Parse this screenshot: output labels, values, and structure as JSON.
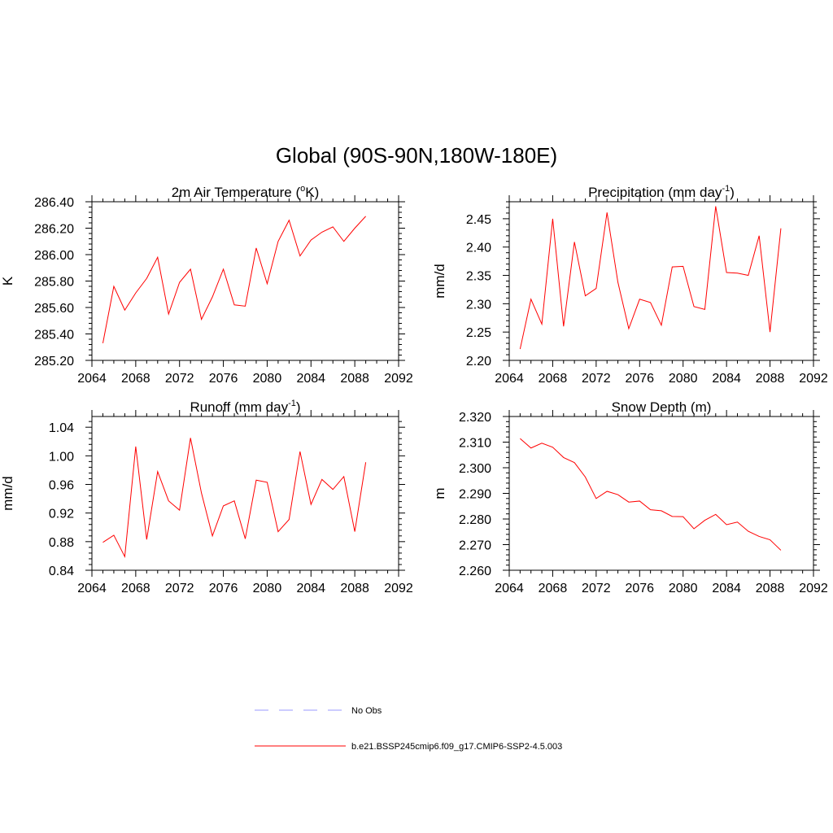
{
  "figure": {
    "title": "Global (90S-90N,180W-180E)"
  },
  "colors": {
    "series": "#ff0000",
    "obs": "#9999ff",
    "axis": "#000000"
  },
  "chart_data": [
    {
      "type": "line",
      "title_main": "2m Air Temperature (",
      "title_sup_o": "o",
      "title_tail": "K)",
      "title_sup": "",
      "title_end": "",
      "ylabel": "K",
      "xlabel": "",
      "xlim": [
        2064,
        2092
      ],
      "ylim": [
        285.2,
        286.4
      ],
      "x_ticks": [
        2064,
        2068,
        2072,
        2076,
        2080,
        2084,
        2088,
        2092
      ],
      "x_tick_labels": [
        "2064",
        "2068",
        "2072",
        "2076",
        "2080",
        "2084",
        "2088",
        "2092"
      ],
      "y_ticks": [
        285.2,
        285.4,
        285.6,
        285.8,
        286.0,
        286.2,
        286.4
      ],
      "y_tick_labels": [
        "285.20",
        "285.40",
        "285.60",
        "285.80",
        "286.00",
        "286.20",
        "286.40"
      ],
      "series": [
        {
          "name": "b.e21.BSSP245cmip6.f09_g17.CMIP6-SSP2-4.5.003",
          "x": [
            2065,
            2066,
            2067,
            2068,
            2069,
            2070,
            2071,
            2072,
            2073,
            2074,
            2075,
            2076,
            2077,
            2078,
            2079,
            2080,
            2081,
            2082,
            2083,
            2084,
            2085,
            2086,
            2087,
            2088,
            2089
          ],
          "y": [
            285.33,
            285.76,
            285.58,
            285.71,
            285.82,
            285.98,
            285.55,
            285.79,
            285.89,
            285.51,
            285.68,
            285.89,
            285.62,
            285.61,
            286.05,
            285.78,
            286.1,
            286.26,
            285.99,
            286.11,
            286.17,
            286.21,
            286.1,
            286.2,
            286.29
          ]
        }
      ]
    },
    {
      "type": "line",
      "title_main": "Precipitation (mm day",
      "title_sup_o": "",
      "title_tail": "",
      "title_sup": "-1",
      "title_end": ")",
      "ylabel": "mm/d",
      "xlabel": "",
      "xlim": [
        2064,
        2092
      ],
      "ylim": [
        2.2,
        2.48
      ],
      "x_ticks": [
        2064,
        2068,
        2072,
        2076,
        2080,
        2084,
        2088,
        2092
      ],
      "x_tick_labels": [
        "2064",
        "2068",
        "2072",
        "2076",
        "2080",
        "2084",
        "2088",
        "2092"
      ],
      "y_ticks": [
        2.2,
        2.25,
        2.3,
        2.35,
        2.4,
        2.45
      ],
      "y_tick_labels": [
        "2.20",
        "2.25",
        "2.30",
        "2.35",
        "2.40",
        "2.45"
      ],
      "series": [
        {
          "name": "b.e21.BSSP245cmip6.f09_g17.CMIP6-SSP2-4.5.003",
          "x": [
            2065,
            2066,
            2067,
            2068,
            2069,
            2070,
            2071,
            2072,
            2073,
            2074,
            2075,
            2076,
            2077,
            2078,
            2079,
            2080,
            2081,
            2082,
            2083,
            2084,
            2085,
            2086,
            2087,
            2088,
            2089
          ],
          "y": [
            2.22,
            2.308,
            2.264,
            2.45,
            2.26,
            2.409,
            2.314,
            2.327,
            2.461,
            2.338,
            2.256,
            2.308,
            2.302,
            2.262,
            2.365,
            2.366,
            2.295,
            2.29,
            2.472,
            2.355,
            2.354,
            2.35,
            2.42,
            2.25,
            2.433
          ]
        }
      ]
    },
    {
      "type": "line",
      "title_main": "Runoff (mm day",
      "title_sup_o": "",
      "title_tail": "",
      "title_sup": "-1",
      "title_end": ")",
      "ylabel": "mm/d",
      "xlabel": "",
      "xlim": [
        2064,
        2092
      ],
      "ylim": [
        0.84,
        1.055
      ],
      "x_ticks": [
        2064,
        2068,
        2072,
        2076,
        2080,
        2084,
        2088,
        2092
      ],
      "x_tick_labels": [
        "2064",
        "2068",
        "2072",
        "2076",
        "2080",
        "2084",
        "2088",
        "2092"
      ],
      "y_ticks": [
        0.84,
        0.88,
        0.92,
        0.96,
        1.0,
        1.04
      ],
      "y_tick_labels": [
        "0.84",
        "0.88",
        "0.92",
        "0.96",
        "1.00",
        "1.04"
      ],
      "series": [
        {
          "name": "b.e21.BSSP245cmip6.f09_g17.CMIP6-SSP2-4.5.003",
          "x": [
            2065,
            2066,
            2067,
            2068,
            2069,
            2070,
            2071,
            2072,
            2073,
            2074,
            2075,
            2076,
            2077,
            2078,
            2079,
            2080,
            2081,
            2082,
            2083,
            2084,
            2085,
            2086,
            2087,
            2088,
            2089
          ],
          "y": [
            0.879,
            0.889,
            0.859,
            1.013,
            0.883,
            0.978,
            0.937,
            0.924,
            1.025,
            0.948,
            0.888,
            0.93,
            0.937,
            0.884,
            0.966,
            0.963,
            0.894,
            0.911,
            1.006,
            0.932,
            0.967,
            0.953,
            0.971,
            0.894,
            0.991
          ]
        }
      ]
    },
    {
      "type": "line",
      "title_main": "Snow Depth (m)",
      "title_sup_o": "",
      "title_tail": "",
      "title_sup": "",
      "title_end": "",
      "ylabel": "m",
      "xlabel": "",
      "xlim": [
        2064,
        2092
      ],
      "ylim": [
        2.26,
        2.32
      ],
      "x_ticks": [
        2064,
        2068,
        2072,
        2076,
        2080,
        2084,
        2088,
        2092
      ],
      "x_tick_labels": [
        "2064",
        "2068",
        "2072",
        "2076",
        "2080",
        "2084",
        "2088",
        "2092"
      ],
      "y_ticks": [
        2.26,
        2.27,
        2.28,
        2.29,
        2.3,
        2.31,
        2.32
      ],
      "y_tick_labels": [
        "2.260",
        "2.270",
        "2.280",
        "2.290",
        "2.300",
        "2.310",
        "2.320"
      ],
      "series": [
        {
          "name": "b.e21.BSSP245cmip6.f09_g17.CMIP6-SSP2-4.5.003",
          "x": [
            2065,
            2066,
            2067,
            2068,
            2069,
            2070,
            2071,
            2072,
            2073,
            2074,
            2075,
            2076,
            2077,
            2078,
            2079,
            2080,
            2081,
            2082,
            2083,
            2084,
            2085,
            2086,
            2087,
            2088,
            2089
          ],
          "y": [
            2.3114,
            2.3077,
            2.3096,
            2.308,
            2.304,
            2.302,
            2.2964,
            2.288,
            2.2908,
            2.2895,
            2.2866,
            2.287,
            2.2836,
            2.2832,
            2.281,
            2.2809,
            2.2762,
            2.2795,
            2.2818,
            2.2778,
            2.2788,
            2.2752,
            2.2732,
            2.2719,
            2.2678
          ]
        }
      ]
    }
  ],
  "legend": {
    "items": [
      {
        "label": "No Obs",
        "style": "dashed",
        "color": "#9999ff"
      },
      {
        "label": "b.e21.BSSP245cmip6.f09_g17.CMIP6-SSP2-4.5.003",
        "style": "solid",
        "color": "#ff0000"
      }
    ]
  }
}
